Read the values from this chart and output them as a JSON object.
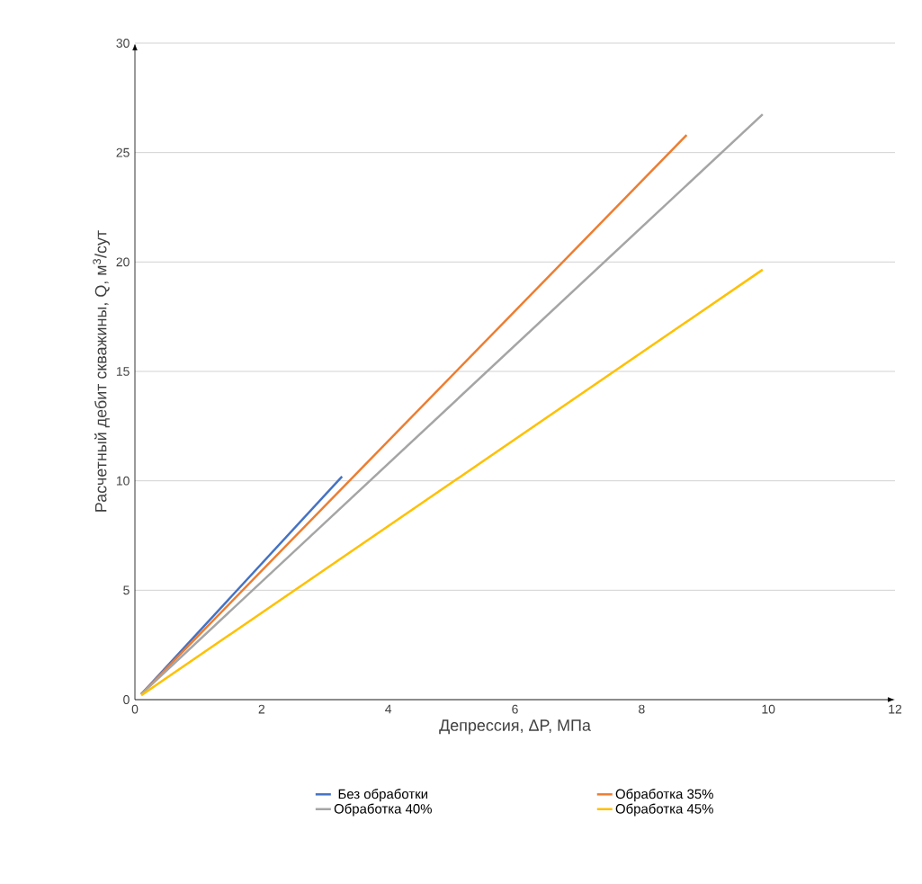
{
  "chart_data": {
    "type": "line",
    "xlabel": "Депрессия, ΔP, МПа",
    "ylabel": "Расчетный дебит скважины, Q, м$^{3}$/сут",
    "series": [
      {
        "name": "Без обработки",
        "color": "#4472c4",
        "x": [
          0.1,
          3.27
        ],
        "values": [
          0.25,
          10.2
        ]
      },
      {
        "name": "Обработка 35%",
        "color": "#ed7d31",
        "x": [
          0.1,
          8.71
        ],
        "values": [
          0.25,
          25.8
        ]
      },
      {
        "name": "Обработка 40%",
        "color": "#a5a5a5",
        "x": [
          0.1,
          9.91
        ],
        "values": [
          0.25,
          26.75
        ]
      },
      {
        "name": "Обработка 45%",
        "color": "#ffc000",
        "x": [
          0.1,
          9.91
        ],
        "values": [
          0.2,
          19.65
        ]
      }
    ],
    "xlim": [
      0,
      12
    ],
    "ylim": [
      0,
      30
    ],
    "xticks": [
      0,
      2,
      4,
      6,
      8,
      10,
      12
    ],
    "yticks": [
      0,
      5,
      10,
      15,
      20,
      25,
      30
    ],
    "grid": "y",
    "legend": "bottom",
    "marker": "none",
    "line_style": "solid"
  }
}
